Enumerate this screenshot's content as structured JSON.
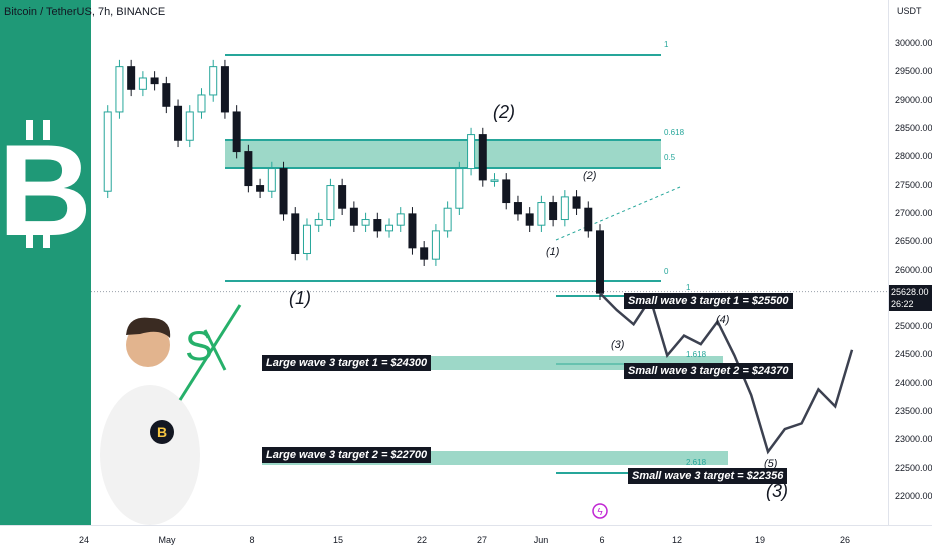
{
  "title": "Bitcoin / TetherUS, 7h, BINANCE",
  "price_unit": "USDT",
  "current_price": "25628.00",
  "countdown": "26:22",
  "chart_data": {
    "type": "candlestick",
    "x_labels": [
      "24",
      "May",
      "8",
      "15",
      "22",
      "27",
      "Jun",
      "6",
      "12",
      "19",
      "26"
    ],
    "y_ticks": [
      30000,
      29500,
      29000,
      28500,
      28000,
      27500,
      27000,
      26500,
      26000,
      25500,
      25000,
      24500,
      24000,
      23500,
      23000,
      22500,
      22000
    ],
    "ylim": [
      21800,
      30500
    ],
    "close_series": [
      27400,
      28800,
      29600,
      29200,
      29400,
      29300,
      28900,
      28300,
      28800,
      29100,
      29600,
      28800,
      28100,
      27500,
      27400,
      27800,
      27000,
      26300,
      26800,
      26900,
      27500,
      27100,
      26800,
      26900,
      26700,
      26800,
      27000,
      26400,
      26200,
      26700,
      27100,
      27800,
      28400,
      27600,
      27600,
      27200,
      27000,
      26800,
      27200,
      26900,
      27300,
      27100,
      26700,
      25600
    ],
    "projection": [
      25600,
      25300,
      25050,
      25500,
      24500,
      24850,
      24700,
      25100,
      24500,
      23800,
      22800,
      23200,
      23300,
      23900,
      23600,
      24600
    ],
    "current_price": 25628
  },
  "annotations": {
    "fib_big": {
      "levels": [
        "1",
        "0.618",
        "0.5",
        "0"
      ]
    },
    "fib_small": {
      "levels": [
        "1",
        "1.618",
        "2.618"
      ]
    },
    "waves_big": [
      "(1)",
      "(2)",
      "(3)"
    ],
    "waves_small": [
      "(1)",
      "(2)",
      "(3)",
      "(4)",
      "(5)"
    ],
    "targets": {
      "large1": "Large wave 3 target 1 = $24300",
      "large2": "Large wave 3 target 2 = $22700",
      "small1": "Small wave 3 target 1 = $25500",
      "small2": "Small wave 3 target 2 = $24370",
      "small3": "Small wave 3 target = $22356"
    }
  },
  "colors": {
    "accent": "#26a69a",
    "band": "#7ccbb5",
    "sidebar": "#1f9977",
    "text": "#131722",
    "projection": "#3c4150"
  },
  "icons": [
    "bitcoin-logo-icon",
    "sx-logo-icon",
    "lightning-icon",
    "avatar-illustration"
  ]
}
